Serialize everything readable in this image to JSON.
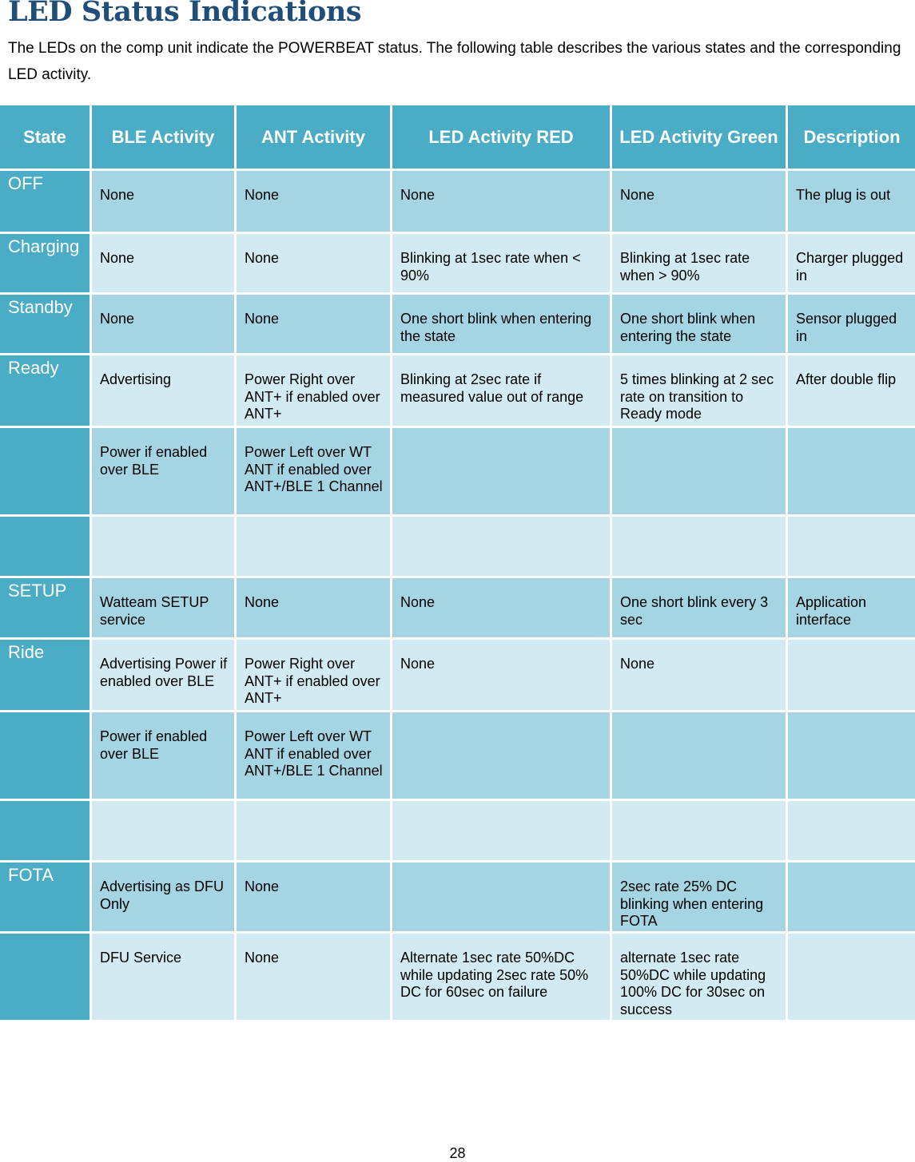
{
  "title": "LED Status Indications",
  "intro": "The LEDs on the comp unit indicate the POWERBEAT status.  The following table describes the various states and the corresponding LED activity.",
  "table": {
    "headers": [
      "State",
      "BLE Activity",
      "ANT Activity",
      "LED Activity RED",
      "LED Activity Green",
      "Description"
    ],
    "rows": [
      [
        "OFF",
        "None",
        "None",
        "None",
        "None",
        "The plug is out"
      ],
      [
        "Charging",
        "None",
        "None",
        "Blinking at 1sec rate when < 90%",
        "Blinking at 1sec rate when > 90%",
        "Charger plugged in"
      ],
      [
        "Standby",
        "None",
        "None",
        "One short blink when entering the state",
        "One short blink when entering the state",
        "Sensor plugged in"
      ],
      [
        "Ready",
        "Advertising",
        "Power Right over ANT+ if enabled over ANT+",
        "Blinking at 2sec rate if measured value out of range",
        "5 times blinking at 2 sec rate on transition to Ready mode",
        "After double flip"
      ],
      [
        "",
        "Power if enabled over BLE",
        "Power Left over WT ANT if enabled over ANT+/BLE 1 Channel",
        "",
        "",
        ""
      ],
      [
        "",
        "",
        "",
        "",
        "",
        ""
      ],
      [
        "SETUP",
        "Watteam SETUP service",
        "None",
        "None",
        "One short blink every 3 sec",
        "Application interface"
      ],
      [
        "Ride",
        "Advertising Power if enabled over BLE",
        "Power Right over ANT+ if enabled over ANT+",
        "None",
        "None",
        ""
      ],
      [
        "",
        "Power if enabled over BLE",
        "Power Left over WT ANT if enabled over ANT+/BLE 1 Channel",
        "",
        "",
        ""
      ],
      [
        "",
        "",
        "",
        "",
        "",
        ""
      ],
      [
        "FOTA",
        "Advertising as DFU Only",
        "None",
        "",
        "2sec rate 25% DC blinking when entering FOTA",
        ""
      ],
      [
        "",
        "DFU Service",
        "None",
        "Alternate 1sec rate 50%DC while updating 2sec rate 50% DC for 60sec on failure",
        "alternate 1sec rate 50%DC while updating 100% DC for 30sec on success",
        ""
      ]
    ]
  },
  "page_number": "28",
  "colors": {
    "header_bg": "#4bacc6",
    "row_dark": "#a5d5e2",
    "row_light": "#d2eaf1",
    "title": "#1f4e79"
  }
}
